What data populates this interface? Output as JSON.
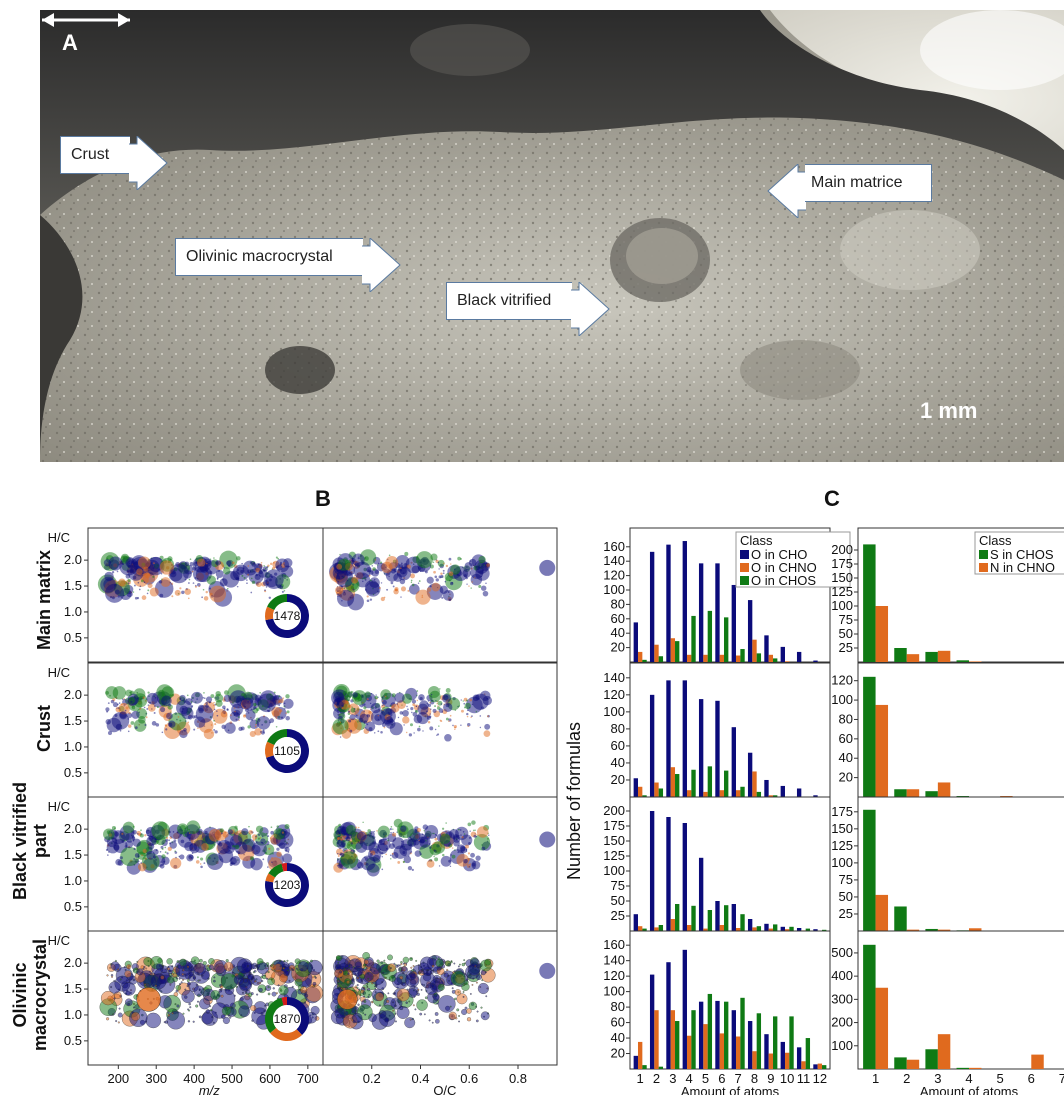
{
  "panel_a": {
    "letter": "A",
    "scale_label": "1 mm",
    "callouts": [
      {
        "label": "Crust"
      },
      {
        "label": "Main matrice"
      },
      {
        "label": "Olivinic macrocrystal"
      },
      {
        "label": "Black vitrified"
      }
    ]
  },
  "panel_b": {
    "letter": "B",
    "rows": [
      {
        "label": "Main matrix",
        "count": "1478",
        "donut": [
          0.72,
          0.1,
          0.18,
          0.0
        ]
      },
      {
        "label": "Crust",
        "count": "1105",
        "donut": [
          0.7,
          0.12,
          0.18,
          0.0
        ]
      },
      {
        "label": "Black vitrified part",
        "count": "1203",
        "donut": [
          0.78,
          0.06,
          0.12,
          0.04
        ]
      },
      {
        "label": "Olivinic macrocrystal",
        "count": "1870",
        "donut": [
          0.38,
          0.26,
          0.32,
          0.04
        ]
      }
    ],
    "ylabel": "H/C",
    "ytick_labels": [
      "0.5",
      "1.0",
      "1.5",
      "2.0"
    ],
    "left_xlabel": "m/z",
    "left_xticks": [
      "200",
      "300",
      "400",
      "500",
      "600",
      "700"
    ],
    "right_xlabel": "O/C",
    "right_xticks": [
      "0.2",
      "0.4",
      "0.6",
      "0.8"
    ]
  },
  "panel_c": {
    "letter": "C",
    "ylabel": "Number of formulas",
    "xlabel": "Amount of atoms",
    "legend_title": "Class",
    "colors": {
      "blue": "#0b0b7a",
      "orange": "#e06a1e",
      "green": "#0f7a14"
    }
  },
  "chart_data": [
    {
      "type": "bar",
      "panel": "C-O",
      "row": "Main matrix",
      "categories": [
        "1",
        "2",
        "3",
        "4",
        "5",
        "6",
        "7",
        "8",
        "9",
        "10",
        "11",
        "12"
      ],
      "series": [
        {
          "name": "O in CHO",
          "values": [
            55,
            153,
            163,
            168,
            137,
            137,
            107,
            86,
            37,
            21,
            14,
            2
          ]
        },
        {
          "name": "O in CHNO",
          "values": [
            14,
            24,
            33,
            10,
            10,
            10,
            9,
            31,
            10,
            1,
            0,
            0
          ]
        },
        {
          "name": "O in CHOS",
          "values": [
            3,
            8,
            29,
            64,
            71,
            62,
            18,
            12,
            5,
            0,
            0,
            0
          ]
        }
      ],
      "yticks": [
        "20",
        "40",
        "60",
        "80",
        "100",
        "120",
        "140",
        "160"
      ]
    },
    {
      "type": "bar",
      "panel": "C-O",
      "row": "Crust",
      "categories": [
        "1",
        "2",
        "3",
        "4",
        "5",
        "6",
        "7",
        "8",
        "9",
        "10",
        "11",
        "12"
      ],
      "series": [
        {
          "name": "O in CHO",
          "values": [
            22,
            120,
            137,
            137,
            115,
            113,
            82,
            52,
            20,
            13,
            10,
            2
          ]
        },
        {
          "name": "O in CHNO",
          "values": [
            12,
            17,
            35,
            8,
            6,
            8,
            8,
            30,
            2,
            0,
            0,
            0
          ]
        },
        {
          "name": "O in CHOS",
          "values": [
            2,
            10,
            27,
            32,
            36,
            31,
            12,
            6,
            2,
            0,
            0,
            0
          ]
        }
      ],
      "yticks": [
        "20",
        "40",
        "60",
        "80",
        "100",
        "120",
        "140"
      ]
    },
    {
      "type": "bar",
      "panel": "C-O",
      "row": "Black vitrified part",
      "categories": [
        "1",
        "2",
        "3",
        "4",
        "5",
        "6",
        "7",
        "8",
        "9",
        "10",
        "11",
        "12"
      ],
      "series": [
        {
          "name": "O in CHO",
          "values": [
            28,
            200,
            190,
            180,
            122,
            50,
            45,
            20,
            12,
            7,
            5,
            3
          ]
        },
        {
          "name": "O in CHNO",
          "values": [
            8,
            6,
            20,
            10,
            4,
            10,
            5,
            6,
            4,
            3,
            1,
            0
          ]
        },
        {
          "name": "O in CHOS",
          "values": [
            4,
            10,
            45,
            42,
            35,
            43,
            28,
            8,
            11,
            7,
            4,
            2
          ]
        }
      ],
      "yticks": [
        "25",
        "50",
        "75",
        "100",
        "125",
        "150",
        "175",
        "200"
      ]
    },
    {
      "type": "bar",
      "panel": "C-O",
      "row": "Olivinic macrocrystal",
      "categories": [
        "1",
        "2",
        "3",
        "4",
        "5",
        "6",
        "7",
        "8",
        "9",
        "10",
        "11",
        "12"
      ],
      "series": [
        {
          "name": "O in CHO",
          "values": [
            17,
            122,
            138,
            154,
            87,
            88,
            76,
            62,
            45,
            35,
            28,
            6
          ]
        },
        {
          "name": "O in CHNO",
          "values": [
            35,
            76,
            76,
            43,
            58,
            46,
            42,
            23,
            20,
            21,
            10,
            7
          ]
        },
        {
          "name": "O in CHOS",
          "values": [
            5,
            3,
            62,
            76,
            97,
            87,
            92,
            72,
            68,
            68,
            40,
            5
          ]
        }
      ],
      "yticks": [
        "20",
        "40",
        "60",
        "80",
        "100",
        "120",
        "140",
        "160"
      ]
    },
    {
      "type": "bar",
      "panel": "C-SN",
      "row": "Main matrix",
      "categories": [
        "1",
        "2",
        "3",
        "4",
        "5",
        "6",
        "7"
      ],
      "series": [
        {
          "name": "S in CHOS",
          "values": [
            210,
            25,
            18,
            3,
            0,
            0,
            0
          ]
        },
        {
          "name": "N in CHNO",
          "values": [
            100,
            14,
            20,
            1,
            0,
            0,
            0
          ]
        }
      ],
      "yticks": [
        "25",
        "50",
        "75",
        "100",
        "125",
        "150",
        "175",
        "200"
      ]
    },
    {
      "type": "bar",
      "panel": "C-SN",
      "row": "Crust",
      "categories": [
        "1",
        "2",
        "3",
        "4",
        "5",
        "6",
        "7"
      ],
      "series": [
        {
          "name": "S in CHOS",
          "values": [
            124,
            8,
            6,
            1,
            0,
            0,
            0
          ]
        },
        {
          "name": "N in CHNO",
          "values": [
            95,
            8,
            15,
            0,
            1,
            0,
            0
          ]
        }
      ],
      "yticks": [
        "20",
        "40",
        "60",
        "80",
        "100",
        "120"
      ]
    },
    {
      "type": "bar",
      "panel": "C-SN",
      "row": "Black vitrified part",
      "categories": [
        "1",
        "2",
        "3",
        "4",
        "5",
        "6",
        "7"
      ],
      "series": [
        {
          "name": "S in CHOS",
          "values": [
            178,
            36,
            3,
            1,
            0,
            0,
            0
          ]
        },
        {
          "name": "N in CHNO",
          "values": [
            53,
            2,
            2,
            4,
            0,
            0,
            0
          ]
        }
      ],
      "yticks": [
        "25",
        "50",
        "75",
        "100",
        "125",
        "150",
        "175"
      ]
    },
    {
      "type": "bar",
      "panel": "C-SN",
      "row": "Olivinic macrocrystal",
      "categories": [
        "1",
        "2",
        "3",
        "4",
        "5",
        "6",
        "7"
      ],
      "series": [
        {
          "name": "S in CHOS",
          "values": [
            535,
            50,
            85,
            5,
            0,
            0,
            0
          ]
        },
        {
          "name": "N in CHNO",
          "values": [
            350,
            40,
            150,
            5,
            0,
            62,
            0
          ]
        }
      ],
      "yticks": [
        "100",
        "200",
        "300",
        "400",
        "500"
      ]
    }
  ]
}
